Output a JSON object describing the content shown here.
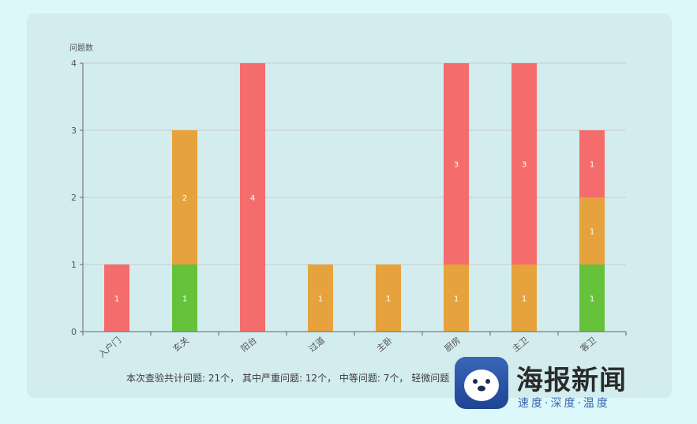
{
  "chart_data": {
    "type": "bar",
    "stacked": true,
    "ylabel": "问题数",
    "ylim": [
      0,
      4
    ],
    "yticks": [
      0,
      1,
      2,
      3,
      4
    ],
    "grid": true,
    "categories": [
      "入户门",
      "玄关",
      "阳台",
      "过道",
      "主卧",
      "厨房",
      "主卫",
      "客卫"
    ],
    "series": [
      {
        "color": "#66c23a",
        "values": [
          0,
          1,
          0,
          0,
          0,
          0,
          0,
          1
        ]
      },
      {
        "color": "#e6a23c",
        "values": [
          0,
          2,
          0,
          1,
          1,
          1,
          1,
          1
        ]
      },
      {
        "color": "#f56c6c",
        "values": [
          1,
          0,
          4,
          0,
          0,
          3,
          3,
          1
        ]
      }
    ]
  },
  "summary": "本次查验共计问题: 21个， 其中严重问题: 12个， 中等问题: 7个， 轻微问题",
  "logo": {
    "name": "海报新闻",
    "slogan": "速度·深度·温度"
  }
}
